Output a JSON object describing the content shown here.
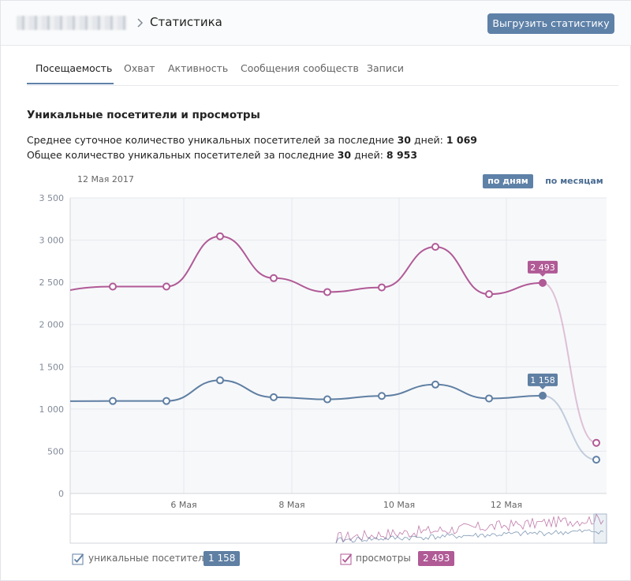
{
  "header": {
    "title": "Статистика",
    "export_label": "Выгрузить статистику",
    "accent": "#5e81a8"
  },
  "tabs": [
    {
      "label": "Посещаемость",
      "active": true
    },
    {
      "label": "Охват"
    },
    {
      "label": "Активность"
    },
    {
      "label": "Сообщения сообществ"
    },
    {
      "label": "Записи"
    }
  ],
  "summary": {
    "title": "Уникальные посетители и просмотры",
    "line1_prefix": "Среднее суточное количество уникальных посетителей за последние",
    "line1_days": "30",
    "line1_mid": "дней:",
    "line1_value": "1 069",
    "line2_prefix": "Общее количество уникальных посетителей за последние",
    "line2_days": "30",
    "line2_mid": "дней:",
    "line2_value": "8 953"
  },
  "controls": {
    "current_date": "12 Мая 2017",
    "by_days": "по дням",
    "by_months": "по месяцам"
  },
  "chart_data": {
    "type": "line",
    "x_tick_labels": [
      "6 Мая",
      "8 Мая",
      "10 Мая",
      "12 Мая"
    ],
    "y_tick_labels": [
      "3 500",
      "3 000",
      "2 500",
      "2 000",
      "1 500",
      "1 000",
      "500",
      "0"
    ],
    "ylim": [
      0,
      3500
    ],
    "grid": true,
    "x": [
      "4 Мая",
      "5 Мая",
      "6 Мая",
      "7 Мая",
      "8 Мая",
      "9 Мая",
      "10 Мая",
      "11 Мая",
      "12 Мая",
      "13 Мая"
    ],
    "series": [
      {
        "name": "просмотры",
        "color": "#b05a96",
        "values": [
          2450,
          2450,
          3045,
          2550,
          2385,
          2440,
          2920,
          2360,
          2493,
          600
        ],
        "last_label": "2 493"
      },
      {
        "name": "уникальные посетители",
        "color": "#5f7fa3",
        "values": [
          1095,
          1095,
          1340,
          1140,
          1115,
          1155,
          1290,
          1125,
          1158,
          400
        ],
        "last_label": "1 158"
      }
    ]
  },
  "legend": [
    {
      "label": "уникальные посетители",
      "value": "1 158",
      "color": "#5f7fa3"
    },
    {
      "label": "просмотры",
      "value": "2 493",
      "color": "#b05a96"
    }
  ]
}
